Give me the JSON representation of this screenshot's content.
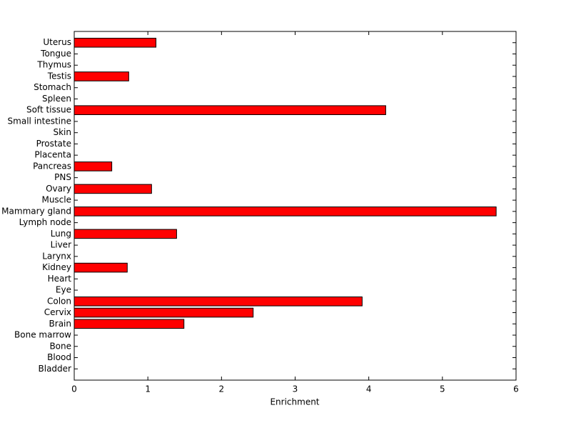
{
  "chart_data": {
    "type": "barh",
    "xlabel": "Enrichment",
    "categories": [
      "Bladder",
      "Blood",
      "Bone",
      "Bone marrow",
      "Brain",
      "Cervix",
      "Colon",
      "Eye",
      "Heart",
      "Kidney",
      "Larynx",
      "Liver",
      "Lung",
      "Lymph node",
      "Mammary gland",
      "Muscle",
      "Ovary",
      "PNS",
      "Pancreas",
      "Placenta",
      "Prostate",
      "Skin",
      "Small intestine",
      "Soft tissue",
      "Spleen",
      "Stomach",
      "Testis",
      "Thymus",
      "Tongue",
      "Uterus"
    ],
    "values": [
      0,
      0,
      0,
      0,
      1.49,
      2.43,
      3.91,
      0,
      0,
      0.72,
      0,
      0,
      1.39,
      0,
      5.73,
      0,
      1.05,
      0,
      0.51,
      0,
      0,
      0,
      0,
      4.23,
      0,
      0,
      0.74,
      0,
      0,
      1.11
    ],
    "color": "#ff0000",
    "xlim": [
      0,
      6
    ],
    "xticks": [
      0,
      1,
      2,
      3,
      4,
      5,
      6
    ]
  }
}
